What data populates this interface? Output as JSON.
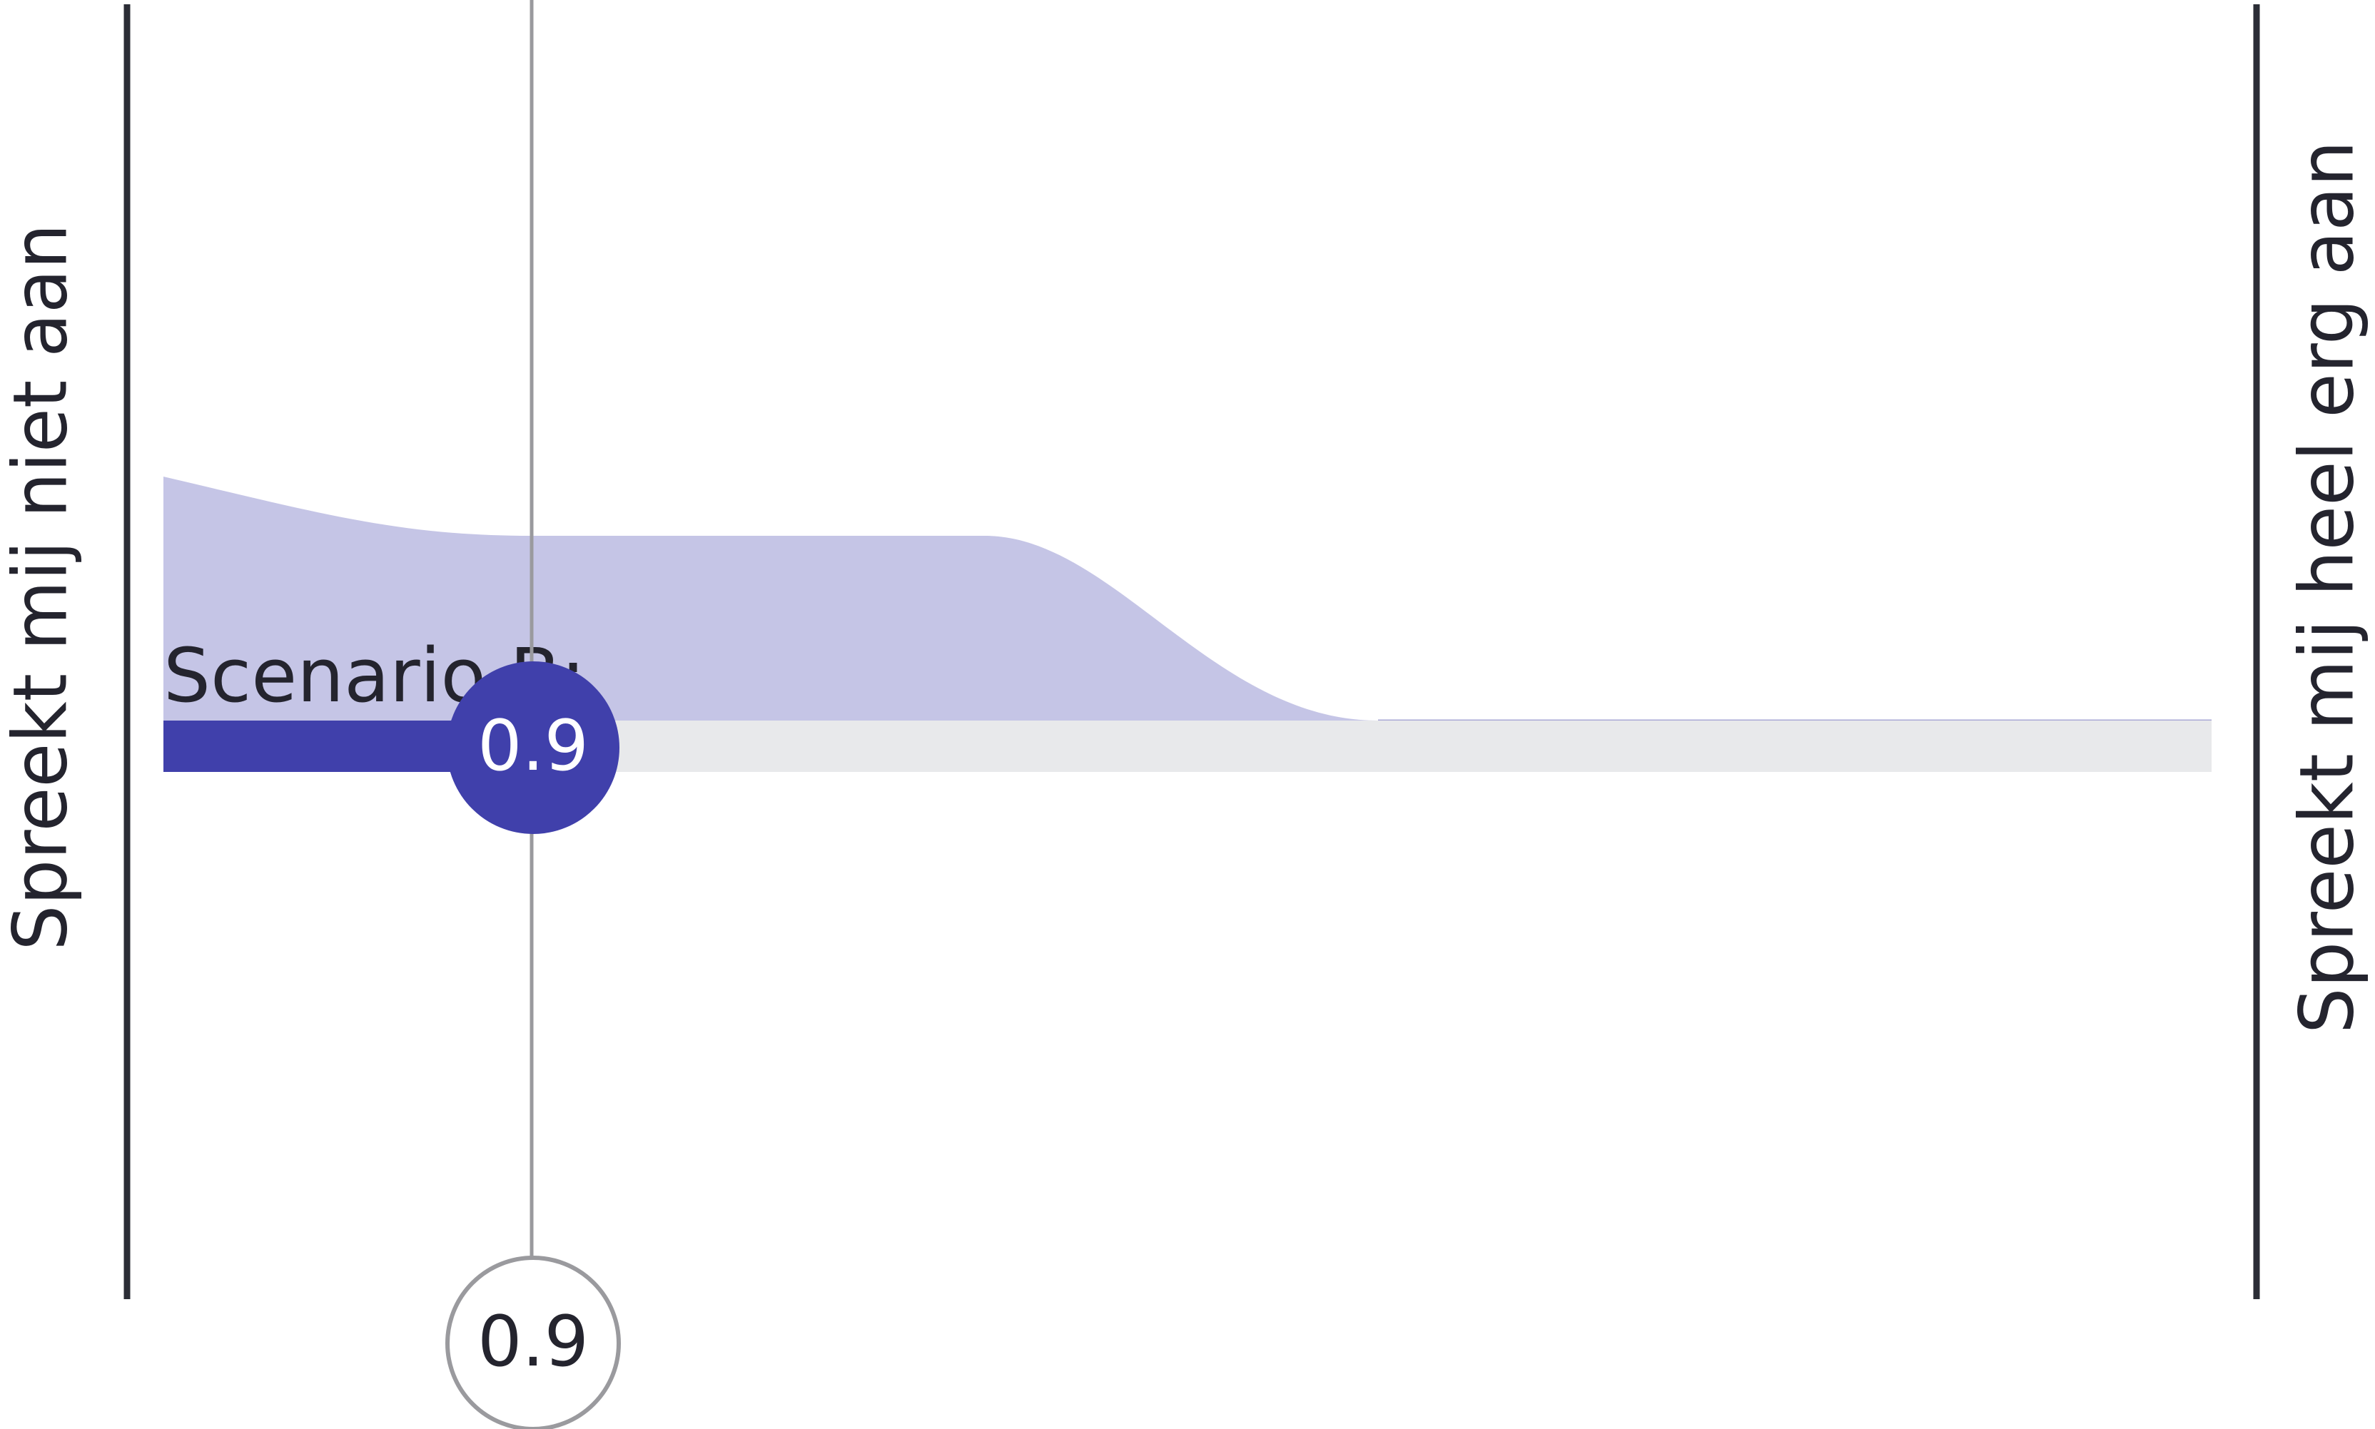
{
  "left_label": "Spreekt mij niet aan",
  "right_label": "Spreekt mij heel erg aan",
  "slider": {
    "label": "Scenario B:",
    "value": 0.9
  },
  "marker": {
    "value": 0.9
  }
}
